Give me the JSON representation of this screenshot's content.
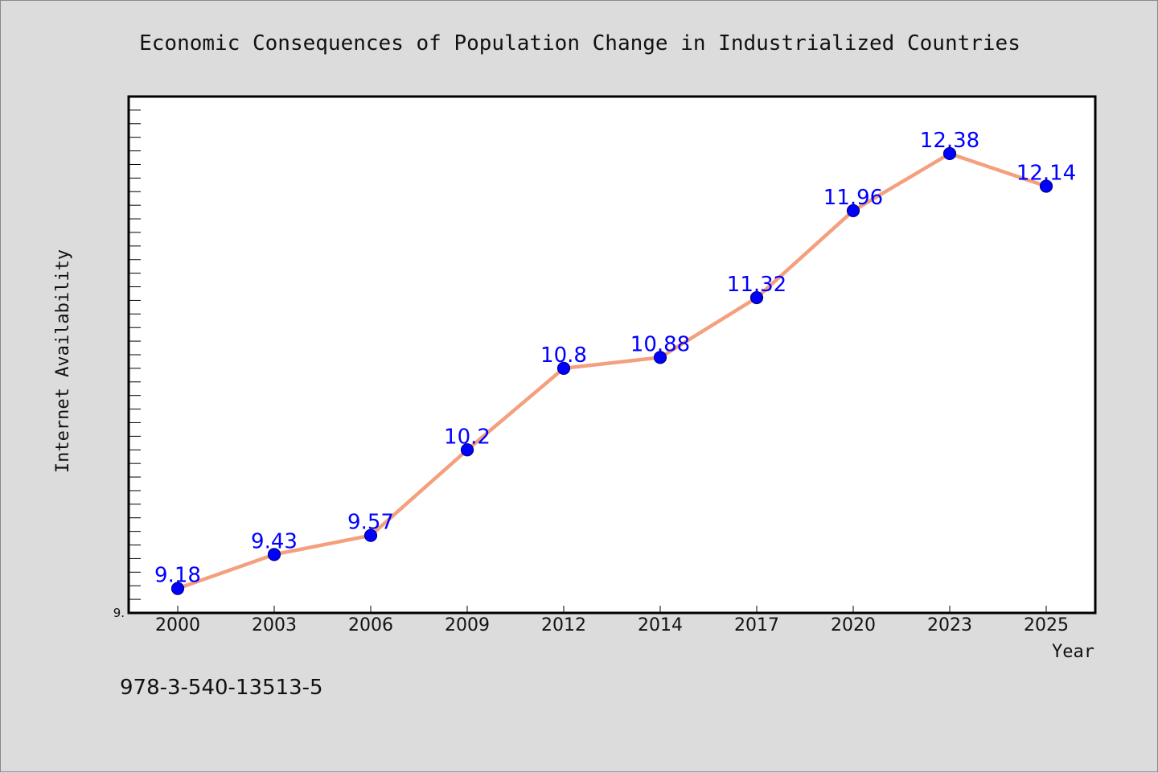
{
  "chart_data": {
    "type": "line",
    "title": "Economic Consequences of Population Change in Industrialized Countries",
    "xlabel": "Year",
    "ylabel": "Internet Availability",
    "categories": [
      "2000",
      "2003",
      "2006",
      "2009",
      "2012",
      "2014",
      "2017",
      "2020",
      "2023",
      "2025"
    ],
    "series": [
      {
        "values": [
          9.18,
          9.43,
          9.57,
          10.2,
          10.8,
          10.88,
          11.32,
          11.96,
          12.38,
          12.14
        ],
        "labels": [
          "9.18",
          "9.43",
          "9.57",
          "10.2",
          "10.8",
          "10.88",
          "11.32",
          "11.96",
          "12.38",
          "12.14"
        ]
      }
    ],
    "y_tick_labels": [
      "9."
    ],
    "ylim": [
      9.0,
      12.8
    ],
    "grid": false,
    "line_color": "#f4a07e",
    "marker_color": "#0000ff",
    "data_label_color": "#0000ff"
  },
  "footer": {
    "isbn": "978-3-540-13513-5"
  }
}
